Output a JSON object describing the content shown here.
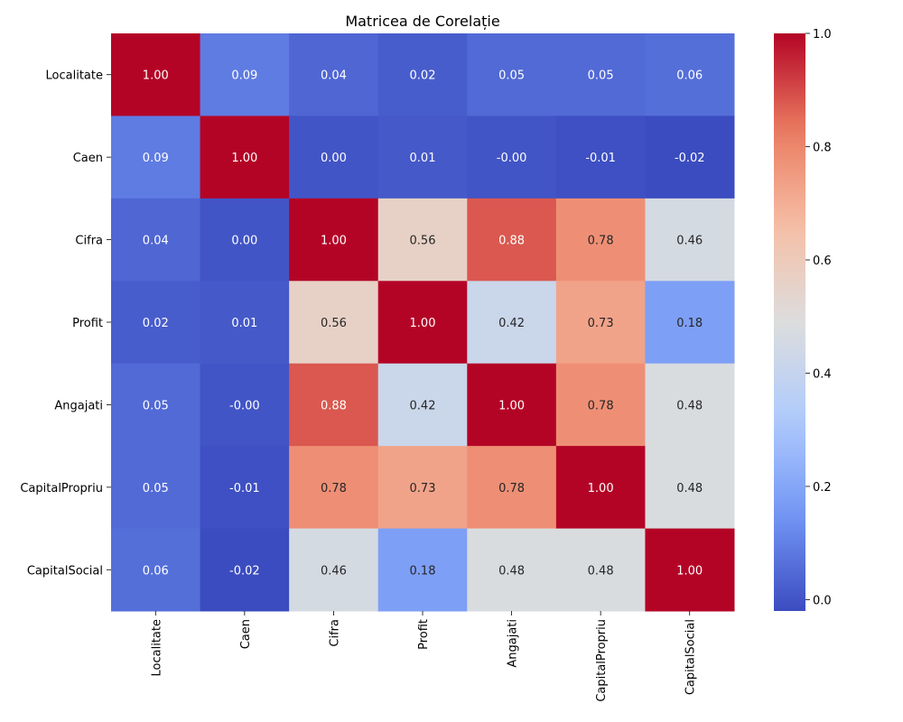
{
  "chart_data": {
    "type": "heatmap",
    "title": "Matricea de Corelație",
    "xlabel": "",
    "ylabel": "",
    "row_labels": [
      "Localitate",
      "Caen",
      "Cifra",
      "Profit",
      "Angajati",
      "CapitalPropriu",
      "CapitalSocial"
    ],
    "col_labels": [
      "Localitate",
      "Caen",
      "Cifra",
      "Profit",
      "Angajati",
      "CapitalPropriu",
      "CapitalSocial"
    ],
    "values": [
      [
        1.0,
        0.09,
        0.04,
        0.02,
        0.05,
        0.05,
        0.06
      ],
      [
        0.09,
        1.0,
        0.0,
        0.01,
        -0.0,
        -0.01,
        -0.02
      ],
      [
        0.04,
        0.0,
        1.0,
        0.56,
        0.88,
        0.78,
        0.46
      ],
      [
        0.02,
        0.01,
        0.56,
        1.0,
        0.42,
        0.73,
        0.18
      ],
      [
        0.05,
        -0.0,
        0.88,
        0.42,
        1.0,
        0.78,
        0.48
      ],
      [
        0.05,
        -0.01,
        0.78,
        0.73,
        0.78,
        1.0,
        0.48
      ],
      [
        0.06,
        -0.02,
        0.46,
        0.18,
        0.48,
        0.48,
        1.0
      ]
    ],
    "annotations": [
      [
        "1.00",
        "0.09",
        "0.04",
        "0.02",
        "0.05",
        "0.05",
        "0.06"
      ],
      [
        "0.09",
        "1.00",
        "0.00",
        "0.01",
        "-0.00",
        "-0.01",
        "-0.02"
      ],
      [
        "0.04",
        "0.00",
        "1.00",
        "0.56",
        "0.88",
        "0.78",
        "0.46"
      ],
      [
        "0.02",
        "0.01",
        "0.56",
        "1.00",
        "0.42",
        "0.73",
        "0.18"
      ],
      [
        "0.05",
        "-0.00",
        "0.88",
        "0.42",
        "1.00",
        "0.78",
        "0.48"
      ],
      [
        "0.05",
        "-0.01",
        "0.78",
        "0.73",
        "0.78",
        "1.00",
        "0.48"
      ],
      [
        "0.06",
        "-0.02",
        "0.46",
        "0.18",
        "0.48",
        "0.48",
        "1.00"
      ]
    ],
    "colorbar": {
      "range": [
        -0.02,
        1.0
      ],
      "ticks": [
        0.0,
        0.2,
        0.4,
        0.6,
        0.8,
        1.0
      ],
      "tick_labels": [
        "0.0",
        "0.2",
        "0.4",
        "0.6",
        "0.8",
        "1.0"
      ]
    },
    "colormap": {
      "name": "coolwarm",
      "stops": [
        "#3b4cc0",
        "#7396f5",
        "#b0cbfc",
        "#dcdddd",
        "#f6bfa6",
        "#ea7b60",
        "#b40426"
      ]
    },
    "legend": "colorbar-right"
  }
}
